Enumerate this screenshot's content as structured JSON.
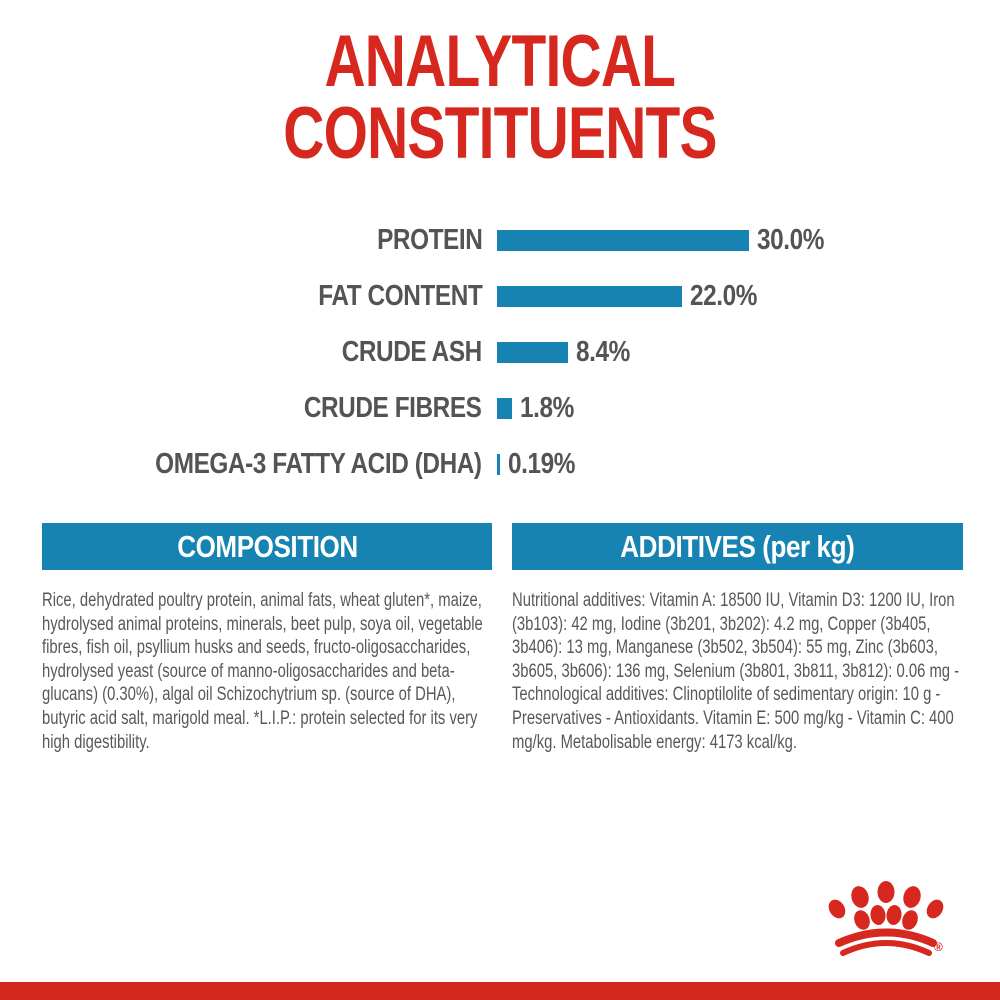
{
  "page_title": {
    "line1": "ANALYTICAL",
    "line2": "CONSTITUENTS"
  },
  "chart_data": {
    "type": "bar",
    "orientation": "horizontal",
    "title": "ANALYTICAL CONSTITUENTS",
    "categories": [
      "PROTEIN",
      "FAT CONTENT",
      "CRUDE ASH",
      "CRUDE FIBRES",
      "OMEGA-3 FATTY ACID (DHA)"
    ],
    "values": [
      30.0,
      22.0,
      8.4,
      1.8,
      0.19
    ],
    "value_labels": [
      "30.0%",
      "22.0%",
      "8.4%",
      "1.8%",
      "0.19%"
    ],
    "unit": "%",
    "xlim": [
      0,
      30
    ],
    "bar_color": "#1783b2",
    "grid": "off",
    "legend": "none"
  },
  "composition": {
    "header": "COMPOSITION",
    "body": "Rice, dehydrated poultry protein, animal fats, wheat gluten*, maize, hydrolysed animal proteins, minerals, beet pulp, soya oil, vegetable fibres, fish oil, psyllium husks and seeds, fructo-oligosaccharides, hydrolysed yeast (source of manno-oligosaccharides and beta-glucans) (0.30%), algal oil Schizochytrium sp. (source of DHA), butyric acid salt, marigold meal. *L.I.P.: protein selected for its very high digestibility."
  },
  "additives": {
    "header": "ADDITIVES (per kg)",
    "body": "Nutritional additives: Vitamin A: 18500 IU, Vitamin D3: 1200 IU, Iron (3b103): 42 mg, Iodine (3b201, 3b202): 4.2 mg, Copper (3b405, 3b406): 13 mg, Manganese (3b502, 3b504): 55 mg, Zinc (3b603, 3b605, 3b606): 136 mg, Selenium (3b801, 3b811, 3b812): 0.06 mg - Technological additives: Clinoptilolite of sedimentary origin: 10 g - Preservatives - Antioxidants. Vitamin E: 500 mg/kg - Vitamin C: 400 mg/kg. Metabolisable energy: 4173 kcal/kg."
  },
  "logo": {
    "name": "royal-canin-crown",
    "registered_mark": "®"
  },
  "colors": {
    "brand_red": "#d6281e",
    "accent_blue": "#1783b2",
    "text_gray": "#58585a",
    "bottom_bar_red": "#d3261d"
  }
}
